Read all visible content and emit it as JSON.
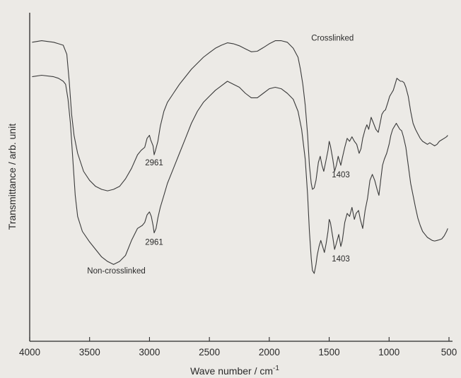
{
  "chart_data": {
    "type": "line",
    "xlabel": "Wave number  / cm",
    "xlabel_sup": "-1",
    "ylabel": "Transmittance / arb. unit",
    "xlim": [
      4000,
      500
    ],
    "x_reversed": true,
    "ylim": [
      0,
      1
    ],
    "y_ticks_shown": false,
    "x_ticks": [
      4000,
      3500,
      3000,
      2500,
      2000,
      1500,
      1000,
      500
    ],
    "x_tick_labels": [
      "4000",
      "3500",
      "3000",
      "2500",
      "2000",
      "1500",
      "1000",
      "500"
    ],
    "grid": false,
    "legend": "none",
    "series": [
      {
        "name": "Crosslinked",
        "values": [
          [
            3980,
            0.93
          ],
          [
            3900,
            0.935
          ],
          [
            3800,
            0.93
          ],
          [
            3760,
            0.925
          ],
          [
            3720,
            0.92
          ],
          [
            3690,
            0.89
          ],
          [
            3670,
            0.8
          ],
          [
            3650,
            0.69
          ],
          [
            3630,
            0.62
          ],
          [
            3600,
            0.56
          ],
          [
            3550,
            0.5
          ],
          [
            3500,
            0.47
          ],
          [
            3450,
            0.45
          ],
          [
            3400,
            0.44
          ],
          [
            3350,
            0.435
          ],
          [
            3300,
            0.44
          ],
          [
            3250,
            0.45
          ],
          [
            3200,
            0.475
          ],
          [
            3150,
            0.51
          ],
          [
            3100,
            0.555
          ],
          [
            3070,
            0.57
          ],
          [
            3040,
            0.58
          ],
          [
            3020,
            0.61
          ],
          [
            3000,
            0.62
          ],
          [
            2990,
            0.605
          ],
          [
            2970,
            0.585
          ],
          [
            2961,
            0.555
          ],
          [
            2950,
            0.57
          ],
          [
            2930,
            0.6
          ],
          [
            2910,
            0.65
          ],
          [
            2880,
            0.7
          ],
          [
            2850,
            0.73
          ],
          [
            2800,
            0.76
          ],
          [
            2750,
            0.79
          ],
          [
            2700,
            0.815
          ],
          [
            2650,
            0.84
          ],
          [
            2600,
            0.86
          ],
          [
            2550,
            0.88
          ],
          [
            2500,
            0.895
          ],
          [
            2450,
            0.91
          ],
          [
            2400,
            0.92
          ],
          [
            2350,
            0.928
          ],
          [
            2300,
            0.925
          ],
          [
            2250,
            0.918
          ],
          [
            2200,
            0.908
          ],
          [
            2150,
            0.898
          ],
          [
            2100,
            0.9
          ],
          [
            2050,
            0.912
          ],
          [
            2000,
            0.925
          ],
          [
            1950,
            0.935
          ],
          [
            1900,
            0.935
          ],
          [
            1850,
            0.93
          ],
          [
            1800,
            0.91
          ],
          [
            1760,
            0.88
          ],
          [
            1740,
            0.84
          ],
          [
            1720,
            0.79
          ],
          [
            1700,
            0.72
          ],
          [
            1680,
            0.62
          ],
          [
            1665,
            0.52
          ],
          [
            1650,
            0.46
          ],
          [
            1640,
            0.44
          ],
          [
            1625,
            0.445
          ],
          [
            1610,
            0.47
          ],
          [
            1600,
            0.5
          ],
          [
            1590,
            0.53
          ],
          [
            1575,
            0.55
          ],
          [
            1560,
            0.52
          ],
          [
            1545,
            0.5
          ],
          [
            1530,
            0.53
          ],
          [
            1510,
            0.57
          ],
          [
            1500,
            0.6
          ],
          [
            1490,
            0.585
          ],
          [
            1470,
            0.54
          ],
          [
            1455,
            0.5
          ],
          [
            1440,
            0.52
          ],
          [
            1425,
            0.55
          ],
          [
            1403,
            0.52
          ],
          [
            1390,
            0.545
          ],
          [
            1370,
            0.58
          ],
          [
            1350,
            0.61
          ],
          [
            1330,
            0.6
          ],
          [
            1310,
            0.615
          ],
          [
            1290,
            0.6
          ],
          [
            1270,
            0.59
          ],
          [
            1250,
            0.56
          ],
          [
            1235,
            0.575
          ],
          [
            1220,
            0.61
          ],
          [
            1200,
            0.64
          ],
          [
            1185,
            0.655
          ],
          [
            1170,
            0.64
          ],
          [
            1160,
            0.66
          ],
          [
            1150,
            0.68
          ],
          [
            1130,
            0.66
          ],
          [
            1110,
            0.64
          ],
          [
            1090,
            0.63
          ],
          [
            1075,
            0.66
          ],
          [
            1060,
            0.69
          ],
          [
            1045,
            0.7
          ],
          [
            1030,
            0.705
          ],
          [
            1010,
            0.73
          ],
          [
            995,
            0.75
          ],
          [
            980,
            0.76
          ],
          [
            965,
            0.77
          ],
          [
            950,
            0.79
          ],
          [
            935,
            0.81
          ],
          [
            920,
            0.805
          ],
          [
            905,
            0.8
          ],
          [
            890,
            0.8
          ],
          [
            875,
            0.795
          ],
          [
            860,
            0.78
          ],
          [
            840,
            0.75
          ],
          [
            820,
            0.7
          ],
          [
            800,
            0.66
          ],
          [
            780,
            0.64
          ],
          [
            760,
            0.625
          ],
          [
            740,
            0.61
          ],
          [
            720,
            0.6
          ],
          [
            700,
            0.595
          ],
          [
            680,
            0.59
          ],
          [
            660,
            0.595
          ],
          [
            640,
            0.59
          ],
          [
            620,
            0.585
          ],
          [
            600,
            0.59
          ],
          [
            580,
            0.6
          ],
          [
            560,
            0.605
          ],
          [
            540,
            0.61
          ],
          [
            520,
            0.615
          ],
          [
            510,
            0.62
          ]
        ]
      },
      {
        "name": "Non-crosslinked",
        "values": [
          [
            3980,
            0.815
          ],
          [
            3900,
            0.82
          ],
          [
            3800,
            0.815
          ],
          [
            3760,
            0.81
          ],
          [
            3720,
            0.8
          ],
          [
            3700,
            0.79
          ],
          [
            3680,
            0.74
          ],
          [
            3660,
            0.66
          ],
          [
            3640,
            0.54
          ],
          [
            3620,
            0.42
          ],
          [
            3600,
            0.35
          ],
          [
            3560,
            0.3
          ],
          [
            3500,
            0.265
          ],
          [
            3450,
            0.24
          ],
          [
            3400,
            0.215
          ],
          [
            3350,
            0.2
          ],
          [
            3300,
            0.19
          ],
          [
            3250,
            0.2
          ],
          [
            3200,
            0.22
          ],
          [
            3150,
            0.27
          ],
          [
            3100,
            0.31
          ],
          [
            3060,
            0.32
          ],
          [
            3040,
            0.33
          ],
          [
            3020,
            0.355
          ],
          [
            3000,
            0.365
          ],
          [
            2985,
            0.35
          ],
          [
            2970,
            0.32
          ],
          [
            2961,
            0.295
          ],
          [
            2945,
            0.31
          ],
          [
            2930,
            0.345
          ],
          [
            2910,
            0.38
          ],
          [
            2880,
            0.42
          ],
          [
            2850,
            0.46
          ],
          [
            2800,
            0.51
          ],
          [
            2750,
            0.56
          ],
          [
            2700,
            0.61
          ],
          [
            2650,
            0.66
          ],
          [
            2600,
            0.7
          ],
          [
            2550,
            0.73
          ],
          [
            2500,
            0.75
          ],
          [
            2450,
            0.77
          ],
          [
            2400,
            0.785
          ],
          [
            2350,
            0.8
          ],
          [
            2300,
            0.79
          ],
          [
            2250,
            0.78
          ],
          [
            2200,
            0.76
          ],
          [
            2150,
            0.745
          ],
          [
            2100,
            0.745
          ],
          [
            2050,
            0.76
          ],
          [
            2000,
            0.775
          ],
          [
            1950,
            0.78
          ],
          [
            1900,
            0.775
          ],
          [
            1850,
            0.76
          ],
          [
            1800,
            0.74
          ],
          [
            1760,
            0.7
          ],
          [
            1730,
            0.64
          ],
          [
            1700,
            0.54
          ],
          [
            1680,
            0.42
          ],
          [
            1665,
            0.3
          ],
          [
            1650,
            0.21
          ],
          [
            1640,
            0.17
          ],
          [
            1625,
            0.16
          ],
          [
            1610,
            0.19
          ],
          [
            1600,
            0.22
          ],
          [
            1585,
            0.25
          ],
          [
            1570,
            0.27
          ],
          [
            1555,
            0.25
          ],
          [
            1540,
            0.23
          ],
          [
            1525,
            0.26
          ],
          [
            1510,
            0.3
          ],
          [
            1500,
            0.34
          ],
          [
            1490,
            0.33
          ],
          [
            1470,
            0.28
          ],
          [
            1455,
            0.24
          ],
          [
            1440,
            0.26
          ],
          [
            1420,
            0.29
          ],
          [
            1403,
            0.25
          ],
          [
            1390,
            0.27
          ],
          [
            1370,
            0.33
          ],
          [
            1350,
            0.36
          ],
          [
            1330,
            0.35
          ],
          [
            1310,
            0.38
          ],
          [
            1290,
            0.34
          ],
          [
            1275,
            0.36
          ],
          [
            1255,
            0.37
          ],
          [
            1240,
            0.34
          ],
          [
            1220,
            0.31
          ],
          [
            1200,
            0.37
          ],
          [
            1180,
            0.41
          ],
          [
            1160,
            0.47
          ],
          [
            1140,
            0.49
          ],
          [
            1120,
            0.47
          ],
          [
            1100,
            0.44
          ],
          [
            1085,
            0.42
          ],
          [
            1070,
            0.47
          ],
          [
            1055,
            0.52
          ],
          [
            1040,
            0.54
          ],
          [
            1020,
            0.56
          ],
          [
            1000,
            0.59
          ],
          [
            985,
            0.62
          ],
          [
            970,
            0.64
          ],
          [
            955,
            0.65
          ],
          [
            940,
            0.66
          ],
          [
            925,
            0.65
          ],
          [
            910,
            0.64
          ],
          [
            895,
            0.635
          ],
          [
            880,
            0.615
          ],
          [
            860,
            0.58
          ],
          [
            840,
            0.52
          ],
          [
            820,
            0.46
          ],
          [
            800,
            0.42
          ],
          [
            780,
            0.38
          ],
          [
            760,
            0.345
          ],
          [
            740,
            0.32
          ],
          [
            720,
            0.3
          ],
          [
            700,
            0.29
          ],
          [
            680,
            0.28
          ],
          [
            660,
            0.275
          ],
          [
            640,
            0.27
          ],
          [
            620,
            0.268
          ],
          [
            600,
            0.27
          ],
          [
            580,
            0.272
          ],
          [
            560,
            0.275
          ],
          [
            540,
            0.285
          ],
          [
            520,
            0.3
          ],
          [
            510,
            0.31
          ]
        ]
      }
    ],
    "annotations": [
      {
        "text": "Crosslinked",
        "x": 1650,
        "y": 0.935
      },
      {
        "text": "2961",
        "x": 2961,
        "y": 0.52
      },
      {
        "text": "1403",
        "x": 1403,
        "y": 0.48
      },
      {
        "text": "2961",
        "x": 2961,
        "y": 0.255
      },
      {
        "text": "1403",
        "x": 1403,
        "y": 0.2
      },
      {
        "text": "Non-crosslinked",
        "x": 3520,
        "y": 0.16
      }
    ]
  }
}
